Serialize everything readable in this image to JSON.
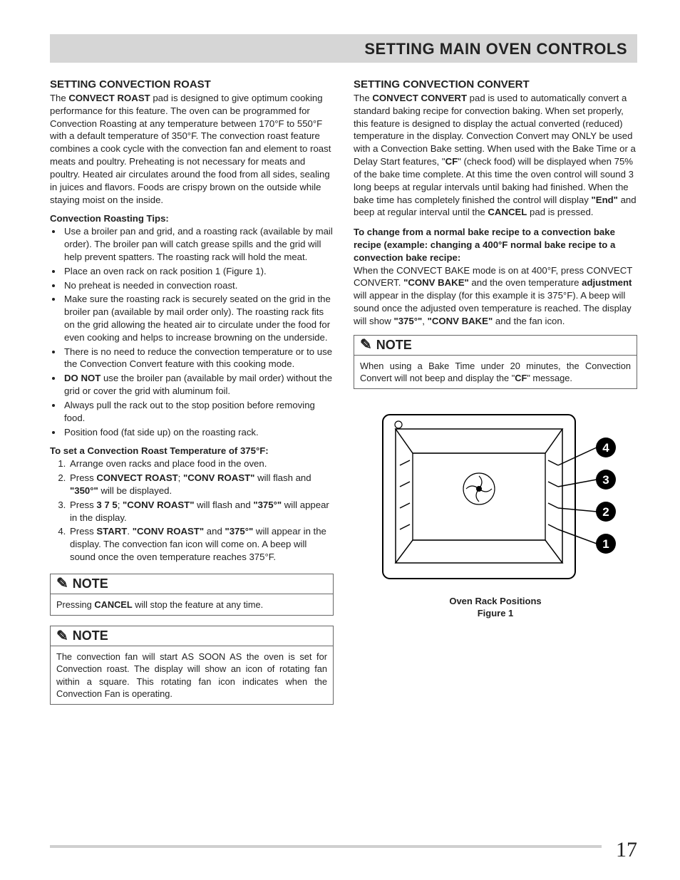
{
  "header": {
    "title": "SETTING MAIN OVEN CONTROLS"
  },
  "left": {
    "h2": "SETTING CONVECTION ROAST",
    "intro_html": "The <b>CONVECT ROAST</b> pad is designed to give optimum cooking performance for this feature. The oven can be programmed for Convection Roasting at any temperature between 170°F to 550°F with a default temperature of 350°F. The convection roast feature combines a cook cycle with the convection fan and element to roast meats and poultry. Preheating is not necessary for meats and poultry. Heated air circulates around the food from all sides, sealing in juices and flavors. Foods are crispy brown on the outside while staying moist on the inside.",
    "tips_head": "Convection Roasting Tips:",
    "tips": [
      "Use a broiler pan and grid, and a roasting rack (available by mail order). The broiler pan will catch grease spills and the grid will help prevent spatters. The roasting rack will hold the meat.",
      "Place an oven rack on rack position 1 (Figure 1).",
      "No preheat is needed in convection roast.",
      "Make sure the roasting rack is securely seated on the grid in the broiler pan (available by mail order only). The roasting rack fits on the grid allowing the heated air to circulate under the food for even cooking and helps to increase browning on the underside.",
      "There is no need to reduce the convection temperature or to use the Convection Convert feature with this cooking mode.",
      "<b>DO NOT</b> use the broiler pan (available by mail order) without the grid or cover the grid with aluminum foil.",
      "Always pull the rack out to the stop position before removing food.",
      "Position food (fat side up) on the roasting rack."
    ],
    "steps_head": "To set a Convection Roast Temperature of 375°F:",
    "steps": [
      "Arrange oven racks and place food in the oven.",
      "Press <b>CONVECT ROAST</b>; <b>\"CONV ROAST\"</b> will flash and <b>\"350°\"</b> will be displayed.",
      "Press <b>3 7 5</b>; <b>\"CONV ROAST\"</b> will flash and <b>\"375°\"</b> will appear in the display.",
      "Press <b>START</b>. <b>\"CONV ROAST\"</b> and <b>\"375°\"</b> will appear in the display. The convection fan icon will come on. A beep will sound once the oven temperature reaches 375°F."
    ],
    "note1_html": "Pressing <b>CANCEL</b> will stop the feature at any time.",
    "note2_html": "The convection fan will start AS SOON AS the oven is set for Convection roast. The display will show an icon of rotating fan within a square. This rotating fan icon indicates when the Convection Fan is operating."
  },
  "right": {
    "h2": "SETTING CONVECTION CONVERT",
    "intro_html": "The <b>CONVECT CONVERT</b> pad is used to automatically convert a standard baking recipe for convection baking. When set properly, this feature is designed to display the actual converted (reduced) temperature in the display. Convection Convert may ONLY be used with a Convection Bake setting. When used with the Bake Time or a Delay Start features, \"<b>CF</b>\" (check food) will be displayed when 75% of the bake time complete. At this time the oven control will sound 3 long beeps at regular intervals until baking had finished. When the bake time has completely finished the control will display <b>\"End\"</b> and beep at regular interval until the <b>CANCEL</b> pad is pressed.",
    "change_head_html": "<b>To change from a normal bake recipe to a convection bake recipe (example: changing a 400°F normal bake recipe to a convection bake recipe:</b>",
    "change_body_html": "When the CONVECT BAKE mode is on at 400°F, press CONVECT CONVERT. <b>\"CONV BAKE\"</b> and the oven temperature <b>adjustment</b> will appear in the display (for this example it is 375°F). A beep will sound once the adjusted oven temperature is reached. The display will show <b>\"375°\"</b>, <b>\"CONV BAKE\"</b> and the fan icon.",
    "note_html": "When using a Bake Time under 20 minutes, the Convection Convert will not beep and display the \"<b>CF</b>\" message.",
    "figure": {
      "caption_line1": "Oven Rack Positions",
      "caption_line2": "Figure 1",
      "labels": [
        "4",
        "3",
        "2",
        "1"
      ],
      "label_bg": "#000000",
      "label_fg": "#ffffff",
      "stroke": "#000000"
    }
  },
  "note_label": "NOTE",
  "page_number": "17",
  "colors": {
    "header_bg": "#d6d6d6",
    "rule": "#cfcfcf"
  }
}
